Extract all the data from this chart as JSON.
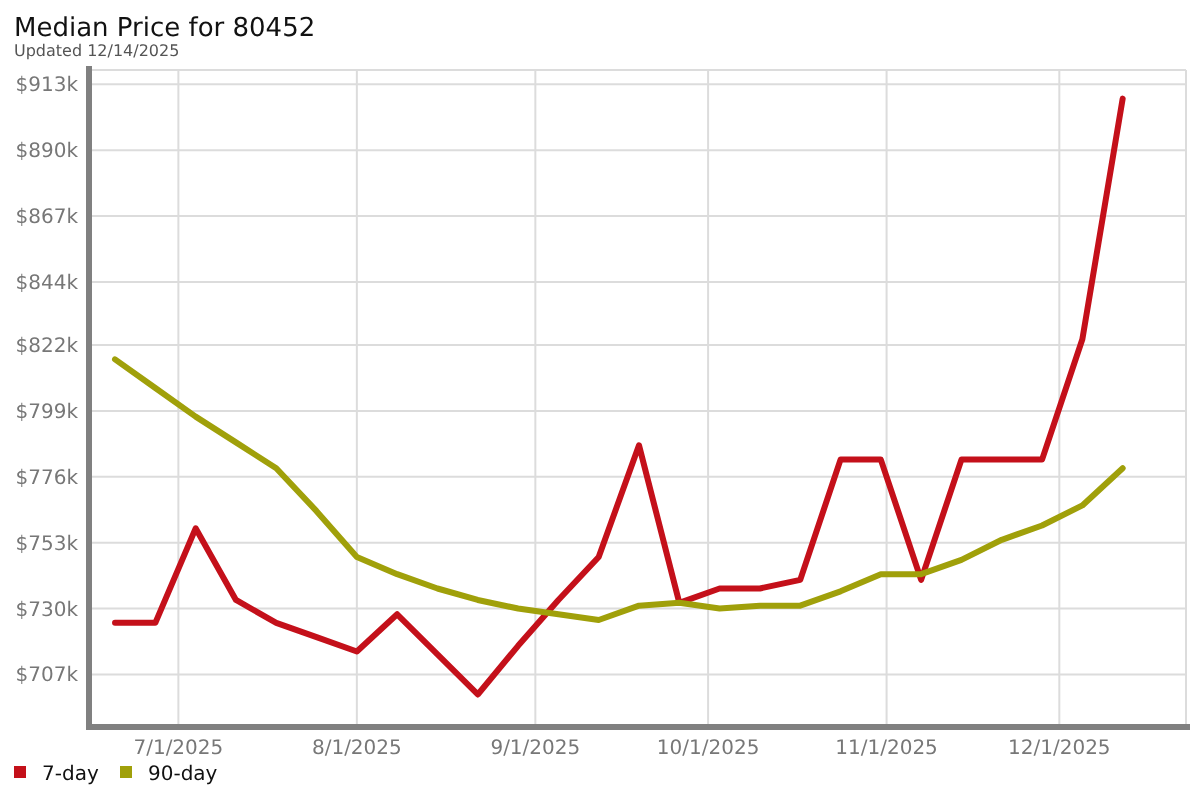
{
  "chart_data": {
    "type": "line",
    "title": "Median Price for 80452",
    "subtitle": "Updated 12/14/2025",
    "x": [
      "2025-06-20",
      "2025-06-27",
      "2025-07-04",
      "2025-07-11",
      "2025-07-18",
      "2025-07-25",
      "2025-08-01",
      "2025-08-08",
      "2025-08-15",
      "2025-08-22",
      "2025-08-29",
      "2025-09-05",
      "2025-09-12",
      "2025-09-19",
      "2025-09-26",
      "2025-10-03",
      "2025-10-10",
      "2025-10-17",
      "2025-10-24",
      "2025-10-31",
      "2025-11-07",
      "2025-11-14",
      "2025-11-21",
      "2025-11-28",
      "2025-12-05",
      "2025-12-12"
    ],
    "series": [
      {
        "name": "7-day",
        "color": "#c4101a",
        "values": [
          725,
          725,
          758,
          733,
          725,
          720,
          715,
          728,
          714,
          700,
          717,
          733,
          748,
          787,
          732,
          737,
          737,
          740,
          782,
          782,
          740,
          782,
          782,
          782,
          824,
          908
        ]
      },
      {
        "name": "90-day",
        "color": "#a0a00a",
        "values": [
          817,
          807,
          797,
          788,
          779,
          764,
          748,
          742,
          737,
          733,
          730,
          728,
          726,
          731,
          732,
          730,
          731,
          731,
          736,
          742,
          742,
          747,
          754,
          759,
          766,
          779
        ]
      }
    ],
    "xlim": [
      "2025-06-16",
      "2025-12-23"
    ],
    "xticks": [
      {
        "value": "2025-07-01",
        "label": "7/1/2025"
      },
      {
        "value": "2025-08-01",
        "label": "8/1/2025"
      },
      {
        "value": "2025-09-01",
        "label": "9/1/2025"
      },
      {
        "value": "2025-10-01",
        "label": "10/1/2025"
      },
      {
        "value": "2025-11-01",
        "label": "11/1/2025"
      },
      {
        "value": "2025-12-01",
        "label": "12/1/2025"
      }
    ],
    "ylim": [
      689,
      918
    ],
    "yticks": [
      {
        "value": 707,
        "label": "$707k"
      },
      {
        "value": 730,
        "label": "$730k"
      },
      {
        "value": 753,
        "label": "$753k"
      },
      {
        "value": 776,
        "label": "$776k"
      },
      {
        "value": 799,
        "label": "$799k"
      },
      {
        "value": 822,
        "label": "$822k"
      },
      {
        "value": 844,
        "label": "$844k"
      },
      {
        "value": 867,
        "label": "$867k"
      },
      {
        "value": 890,
        "label": "$890k"
      },
      {
        "value": 913,
        "label": "$913k"
      }
    ],
    "grid": true,
    "legend": "bottom"
  }
}
